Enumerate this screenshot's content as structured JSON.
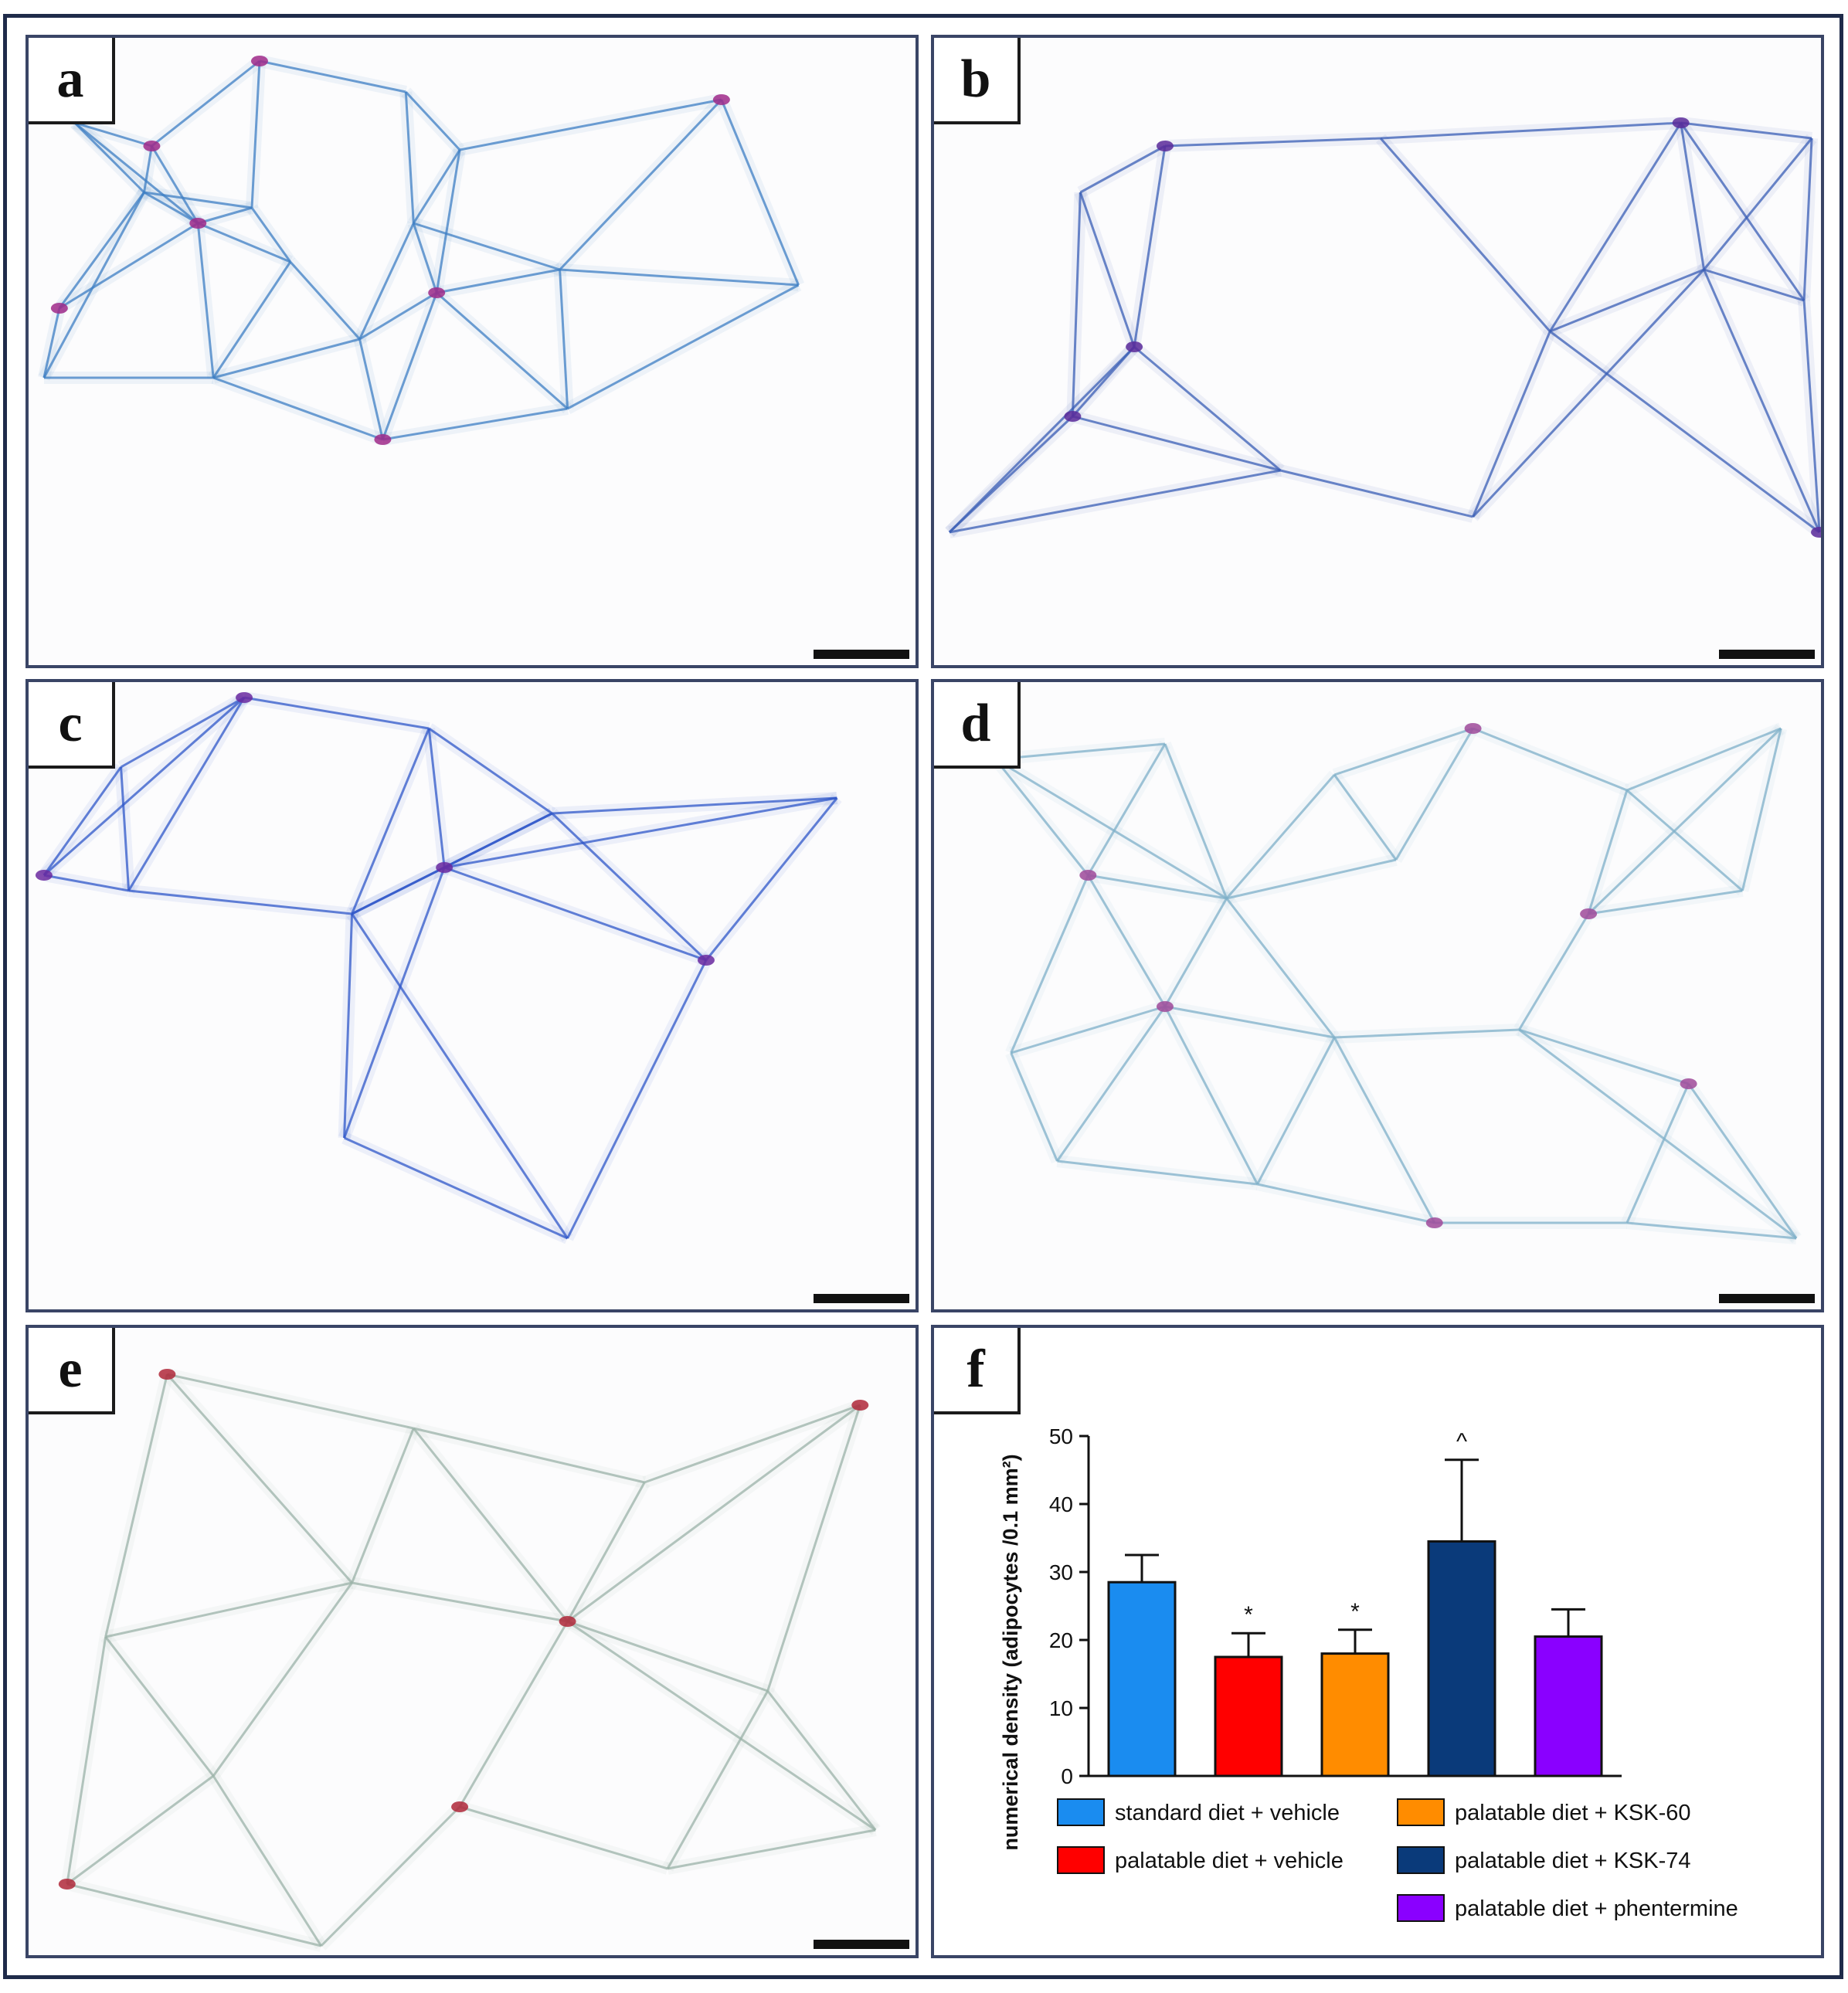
{
  "panels": [
    {
      "id": "a",
      "label": "a",
      "membrane": "#3d7fc4",
      "nuclei": "#a02a8a"
    },
    {
      "id": "b",
      "label": "b",
      "membrane": "#3a5fb5",
      "nuclei": "#5a2a9a"
    },
    {
      "id": "c",
      "label": "c",
      "membrane": "#2f57c8",
      "nuclei": "#6b2aa0"
    },
    {
      "id": "d",
      "label": "d",
      "membrane": "#7fb0c8",
      "nuclei": "#a04a9a"
    },
    {
      "id": "e",
      "label": "e",
      "membrane": "#9bb3a8",
      "nuclei": "#b0283a"
    }
  ],
  "chart_panel_label": "f",
  "chart_data": {
    "type": "bar",
    "categories": [
      "standard diet + vehicle",
      "palatable diet + vehicle",
      "palatable diet + KSK-60",
      "palatable diet + KSK-74",
      "palatable diet + phentermine"
    ],
    "values": [
      28.5,
      17.5,
      18,
      34.5,
      20.5
    ],
    "errors": [
      4,
      3.5,
      3.5,
      12,
      4
    ],
    "markers": [
      "",
      "*",
      "*",
      "^",
      ""
    ],
    "colors": [
      "#1a8cf0",
      "#ff0000",
      "#ff8c00",
      "#0a3a7a",
      "#8a00ff"
    ],
    "ylabel": "numerical density (adipocytes /0.1 mm²)",
    "ylim": [
      0,
      50
    ],
    "yticks": [
      0,
      10,
      20,
      30,
      40,
      50
    ],
    "legend_position": "bottom"
  }
}
